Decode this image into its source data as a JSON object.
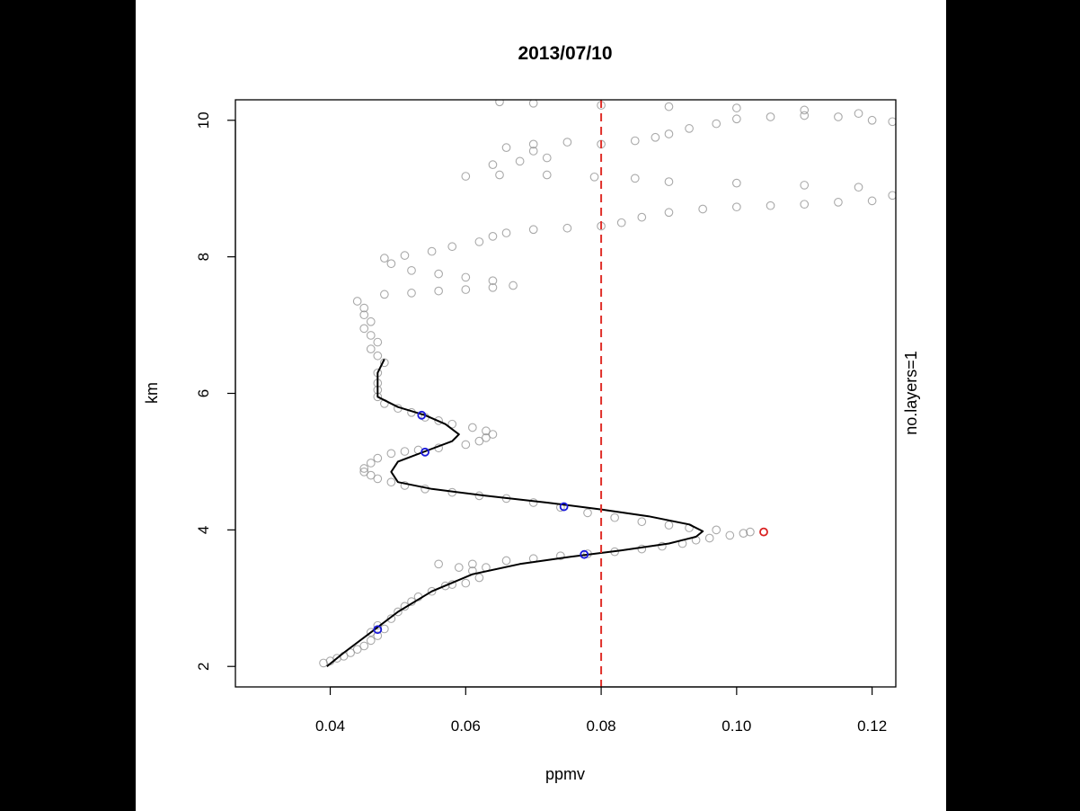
{
  "chart_data": {
    "type": "scatter",
    "title": "2013/07/10",
    "xlabel": "ppmv",
    "ylabel": "km",
    "right_label": "no.layers=1",
    "xlim": [
      0.026,
      0.1235
    ],
    "ylim": [
      1.7,
      10.3
    ],
    "x_ticks": [
      {
        "value": 0.04,
        "label": "0.04"
      },
      {
        "value": 0.06,
        "label": "0.06"
      },
      {
        "value": 0.08,
        "label": "0.08"
      },
      {
        "value": 0.1,
        "label": "0.10"
      },
      {
        "value": 0.12,
        "label": "0.12"
      }
    ],
    "y_ticks": [
      {
        "value": 2,
        "label": "2"
      },
      {
        "value": 4,
        "label": "4"
      },
      {
        "value": 6,
        "label": "6"
      },
      {
        "value": 8,
        "label": "8"
      },
      {
        "value": 10,
        "label": "10"
      }
    ],
    "threshold_line": {
      "x": 0.08,
      "color": "#e0302a",
      "style": "dashed"
    },
    "observations_color": "#8c8c8c",
    "observations": [
      [
        0.039,
        2.05
      ],
      [
        0.04,
        2.08
      ],
      [
        0.041,
        2.12
      ],
      [
        0.042,
        2.15
      ],
      [
        0.043,
        2.2
      ],
      [
        0.044,
        2.25
      ],
      [
        0.045,
        2.3
      ],
      [
        0.046,
        2.38
      ],
      [
        0.047,
        2.45
      ],
      [
        0.046,
        2.5
      ],
      [
        0.048,
        2.55
      ],
      [
        0.047,
        2.6
      ],
      [
        0.049,
        2.7
      ],
      [
        0.05,
        2.8
      ],
      [
        0.051,
        2.88
      ],
      [
        0.052,
        2.95
      ],
      [
        0.053,
        3.02
      ],
      [
        0.055,
        3.1
      ],
      [
        0.057,
        3.18
      ],
      [
        0.058,
        3.2
      ],
      [
        0.06,
        3.22
      ],
      [
        0.062,
        3.3
      ],
      [
        0.061,
        3.4
      ],
      [
        0.059,
        3.45
      ],
      [
        0.063,
        3.45
      ],
      [
        0.056,
        3.5
      ],
      [
        0.061,
        3.5
      ],
      [
        0.066,
        3.55
      ],
      [
        0.07,
        3.58
      ],
      [
        0.074,
        3.62
      ],
      [
        0.078,
        3.65
      ],
      [
        0.082,
        3.68
      ],
      [
        0.086,
        3.72
      ],
      [
        0.089,
        3.76
      ],
      [
        0.092,
        3.8
      ],
      [
        0.094,
        3.85
      ],
      [
        0.096,
        3.88
      ],
      [
        0.099,
        3.92
      ],
      [
        0.101,
        3.95
      ],
      [
        0.102,
        3.97
      ],
      [
        0.097,
        4.0
      ],
      [
        0.093,
        4.03
      ],
      [
        0.09,
        4.07
      ],
      [
        0.086,
        4.12
      ],
      [
        0.082,
        4.18
      ],
      [
        0.078,
        4.25
      ],
      [
        0.074,
        4.33
      ],
      [
        0.07,
        4.4
      ],
      [
        0.066,
        4.46
      ],
      [
        0.062,
        4.5
      ],
      [
        0.058,
        4.55
      ],
      [
        0.054,
        4.6
      ],
      [
        0.051,
        4.65
      ],
      [
        0.049,
        4.7
      ],
      [
        0.047,
        4.75
      ],
      [
        0.046,
        4.8
      ],
      [
        0.045,
        4.85
      ],
      [
        0.045,
        4.9
      ],
      [
        0.046,
        4.98
      ],
      [
        0.047,
        5.05
      ],
      [
        0.049,
        5.12
      ],
      [
        0.051,
        5.15
      ],
      [
        0.053,
        5.17
      ],
      [
        0.056,
        5.2
      ],
      [
        0.06,
        5.25
      ],
      [
        0.062,
        5.3
      ],
      [
        0.063,
        5.35
      ],
      [
        0.064,
        5.4
      ],
      [
        0.063,
        5.45
      ],
      [
        0.061,
        5.5
      ],
      [
        0.058,
        5.55
      ],
      [
        0.056,
        5.6
      ],
      [
        0.054,
        5.65
      ],
      [
        0.052,
        5.72
      ],
      [
        0.05,
        5.78
      ],
      [
        0.048,
        5.85
      ],
      [
        0.047,
        5.95
      ],
      [
        0.047,
        6.05
      ],
      [
        0.047,
        6.15
      ],
      [
        0.047,
        6.3
      ],
      [
        0.048,
        6.45
      ],
      [
        0.047,
        6.55
      ],
      [
        0.046,
        6.65
      ],
      [
        0.047,
        6.75
      ],
      [
        0.046,
        6.85
      ],
      [
        0.045,
        6.95
      ],
      [
        0.046,
        7.05
      ],
      [
        0.045,
        7.15
      ],
      [
        0.045,
        7.25
      ],
      [
        0.044,
        7.35
      ],
      [
        0.048,
        7.45
      ],
      [
        0.052,
        7.47
      ],
      [
        0.056,
        7.5
      ],
      [
        0.06,
        7.52
      ],
      [
        0.064,
        7.55
      ],
      [
        0.067,
        7.58
      ],
      [
        0.064,
        7.65
      ],
      [
        0.06,
        7.7
      ],
      [
        0.056,
        7.75
      ],
      [
        0.052,
        7.8
      ],
      [
        0.049,
        7.9
      ],
      [
        0.048,
        7.98
      ],
      [
        0.051,
        8.02
      ],
      [
        0.055,
        8.08
      ],
      [
        0.058,
        8.15
      ],
      [
        0.062,
        8.22
      ],
      [
        0.064,
        8.3
      ],
      [
        0.066,
        8.35
      ],
      [
        0.07,
        8.4
      ],
      [
        0.075,
        8.42
      ],
      [
        0.08,
        8.45
      ],
      [
        0.083,
        8.5
      ],
      [
        0.086,
        8.58
      ],
      [
        0.09,
        8.65
      ],
      [
        0.095,
        8.7
      ],
      [
        0.1,
        8.73
      ],
      [
        0.105,
        8.75
      ],
      [
        0.11,
        8.77
      ],
      [
        0.115,
        8.8
      ],
      [
        0.12,
        8.82
      ],
      [
        0.123,
        8.9
      ],
      [
        0.118,
        9.02
      ],
      [
        0.11,
        9.05
      ],
      [
        0.1,
        9.08
      ],
      [
        0.09,
        9.1
      ],
      [
        0.085,
        9.15
      ],
      [
        0.079,
        9.17
      ],
      [
        0.072,
        9.2
      ],
      [
        0.065,
        9.2
      ],
      [
        0.06,
        9.18
      ],
      [
        0.064,
        9.35
      ],
      [
        0.068,
        9.4
      ],
      [
        0.072,
        9.45
      ],
      [
        0.07,
        9.55
      ],
      [
        0.066,
        9.6
      ],
      [
        0.07,
        9.65
      ],
      [
        0.075,
        9.68
      ],
      [
        0.08,
        9.65
      ],
      [
        0.085,
        9.7
      ],
      [
        0.088,
        9.75
      ],
      [
        0.09,
        9.8
      ],
      [
        0.093,
        9.88
      ],
      [
        0.097,
        9.95
      ],
      [
        0.1,
        10.02
      ],
      [
        0.105,
        10.05
      ],
      [
        0.11,
        10.07
      ],
      [
        0.115,
        10.05
      ],
      [
        0.12,
        10.0
      ],
      [
        0.123,
        9.98
      ],
      [
        0.118,
        10.1
      ],
      [
        0.11,
        10.15
      ],
      [
        0.1,
        10.18
      ],
      [
        0.09,
        10.2
      ],
      [
        0.08,
        10.22
      ],
      [
        0.07,
        10.25
      ],
      [
        0.065,
        10.27
      ]
    ],
    "fit_line_color": "#000000",
    "fit_line": [
      [
        0.0395,
        2.0
      ],
      [
        0.042,
        2.2
      ],
      [
        0.046,
        2.5
      ],
      [
        0.05,
        2.8
      ],
      [
        0.055,
        3.1
      ],
      [
        0.061,
        3.35
      ],
      [
        0.068,
        3.5
      ],
      [
        0.075,
        3.6
      ],
      [
        0.083,
        3.7
      ],
      [
        0.09,
        3.8
      ],
      [
        0.094,
        3.9
      ],
      [
        0.095,
        3.98
      ],
      [
        0.093,
        4.08
      ],
      [
        0.087,
        4.2
      ],
      [
        0.08,
        4.3
      ],
      [
        0.072,
        4.4
      ],
      [
        0.063,
        4.5
      ],
      [
        0.055,
        4.6
      ],
      [
        0.05,
        4.7
      ],
      [
        0.049,
        4.85
      ],
      [
        0.05,
        5.0
      ],
      [
        0.054,
        5.15
      ],
      [
        0.058,
        5.3
      ],
      [
        0.059,
        5.4
      ],
      [
        0.057,
        5.55
      ],
      [
        0.054,
        5.68
      ],
      [
        0.05,
        5.8
      ],
      [
        0.047,
        5.95
      ],
      [
        0.047,
        6.1
      ],
      [
        0.047,
        6.3
      ],
      [
        0.048,
        6.5
      ]
    ],
    "markers_blue": [
      [
        0.0535,
        5.68
      ],
      [
        0.054,
        5.14
      ],
      [
        0.0745,
        4.34
      ],
      [
        0.0775,
        3.64
      ],
      [
        0.047,
        2.54
      ]
    ],
    "marker_red": [
      0.104,
      3.97
    ]
  }
}
